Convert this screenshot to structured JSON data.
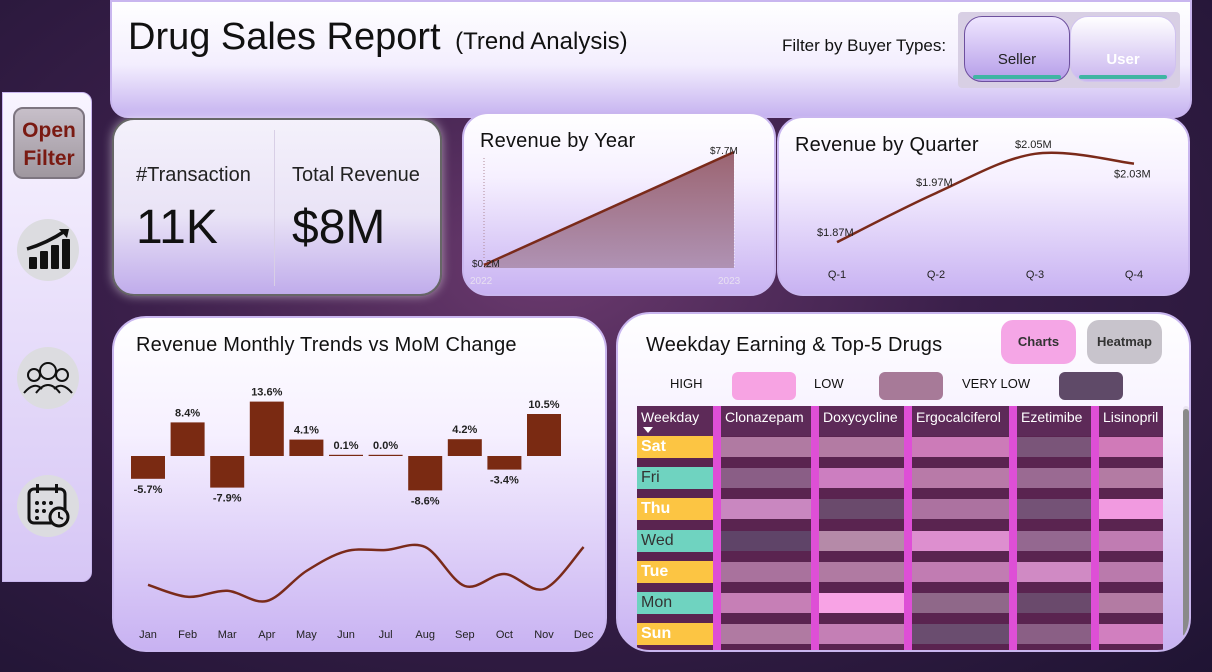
{
  "header": {
    "title": "Drug Sales Report",
    "subtitle": "(Trend Analysis)",
    "filter_label": "Filter by Buyer Types:",
    "buyer_types": [
      "Seller",
      "User"
    ]
  },
  "sidebar": {
    "open_filter_label": "Open Filter",
    "nav_icons": [
      "growth-chart-icon",
      "people-group-icon",
      "calendar-clock-icon"
    ]
  },
  "kpi": {
    "transactions_label": "#Transaction",
    "transactions_value": "11K",
    "revenue_label": "Total Revenue",
    "revenue_value": "$8M"
  },
  "revenue_by_year": {
    "title": "Revenue by Year",
    "chart_data": {
      "type": "area",
      "x": [
        "2022",
        "2023"
      ],
      "values": [
        0.2,
        7.7
      ],
      "data_labels": [
        "$0.2M",
        "$7.7M"
      ],
      "unit": "$M"
    }
  },
  "revenue_by_quarter": {
    "title": "Revenue by Quarter",
    "chart_data": {
      "type": "line",
      "categories": [
        "Q-1",
        "Q-2",
        "Q-3",
        "Q-4"
      ],
      "values": [
        1.87,
        1.97,
        2.05,
        2.03
      ],
      "data_labels": [
        "$1.87M",
        "$1.97M",
        "$2.05M",
        "$2.03M"
      ],
      "unit": "$M"
    }
  },
  "monthly_trends": {
    "title": "Revenue Monthly Trends vs MoM Change",
    "chart_data": {
      "type": "bar",
      "categories": [
        "Jan",
        "Feb",
        "Mar",
        "Apr",
        "May",
        "Jun",
        "Jul",
        "Aug",
        "Sep",
        "Oct",
        "Nov",
        "Dec"
      ],
      "mom_change_pct": [
        -5.7,
        8.4,
        -7.9,
        13.6,
        4.1,
        0.1,
        0.0,
        -8.6,
        4.2,
        -3.4,
        10.5,
        null
      ],
      "data_labels": [
        "-5.7%",
        "8.4%",
        "-7.9%",
        "13.6%",
        "4.1%",
        "0.1%",
        "0.0%",
        "-8.6%",
        "4.2%",
        "-3.4%",
        "10.5%"
      ],
      "revenue_trend_relative": [
        0.32,
        0.12,
        0.22,
        0.05,
        0.55,
        0.88,
        0.9,
        0.95,
        0.3,
        0.5,
        0.25,
        0.95
      ]
    }
  },
  "weekday": {
    "title": "Weekday Earning & Top-5 Drugs",
    "view_buttons": [
      "Charts",
      "Heatmap"
    ],
    "legend": [
      {
        "label": "HIGH",
        "color": "#f7a3e3"
      },
      {
        "label": "LOW",
        "color": "#a77a98"
      },
      {
        "label": "VERY LOW",
        "color": "#5f4a68"
      }
    ],
    "chart_data": {
      "type": "heatmap",
      "row_header": "Weekday",
      "columns": [
        "Clonazepam",
        "Doxycycline",
        "Ergocalciferol",
        "Ezetimibe",
        "Lisinopril"
      ],
      "rows": [
        "Sat",
        "Fri",
        "Thu",
        "Wed",
        "Tue",
        "Mon",
        "Sun"
      ],
      "day_colors": [
        "#fcc543",
        "#6fd3c0",
        "#fcc543",
        "#6fd3c0",
        "#fcc543",
        "#6fd3c0",
        "#fcc543"
      ],
      "cells": [
        [
          "#b07aa2",
          "#b37ba3",
          "#cc7bb8",
          "#7a5579",
          "#d07ab8"
        ],
        [
          "#8a5e86",
          "#cc7ec0",
          "#b87aa8",
          "#9a6a92",
          "#b37ba3"
        ],
        [
          "#c987c0",
          "#6a4a6c",
          "#ac72a0",
          "#745276",
          "#f19ae0"
        ],
        [
          "#5f4468",
          "#b58aa8",
          "#dd8fcf",
          "#946890",
          "#c07cb2"
        ],
        [
          "#a9729d",
          "#b07aa2",
          "#c17cb2",
          "#d08ac4",
          "#ba7aac"
        ],
        [
          "#c67fb6",
          "#f8a3e5",
          "#8f6889",
          "#6a4a6c",
          "#b37ba3"
        ],
        [
          "#b07aa2",
          "#c47fb5",
          "#6a4d6f",
          "#8a5f85",
          "#d17fbf"
        ]
      ]
    }
  }
}
